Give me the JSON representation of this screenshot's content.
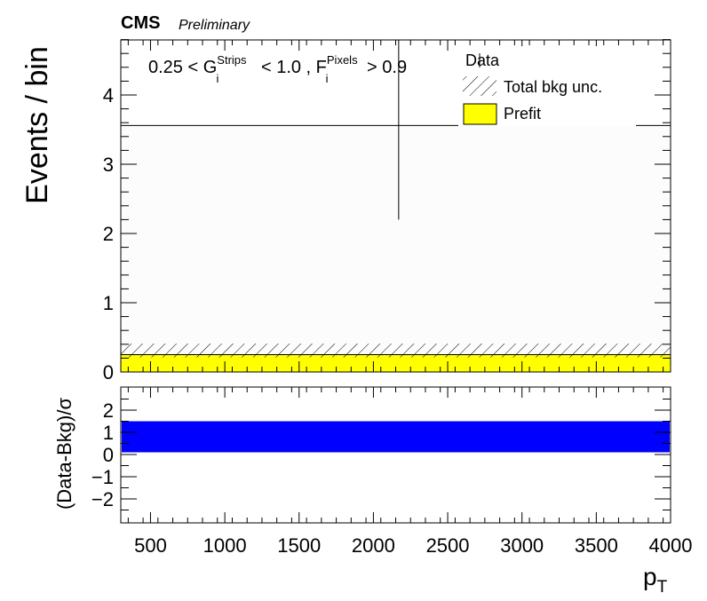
{
  "header": {
    "cms": "CMS",
    "preliminary": "Preliminary"
  },
  "annotation": {
    "prefix": "0.25 < G",
    "sub1": "i",
    "sup1": "Strips",
    "middle": " < 1.0 , F",
    "sub2": "i",
    "sup2": "Pixels",
    "suffix": " > 0.9"
  },
  "legend": {
    "data": "Data",
    "unc": "Total bkg unc.",
    "prefit": "Prefit"
  },
  "colors": {
    "prefit": "#ffff00",
    "ratio_band": "#0000ff",
    "hatch": "#000000"
  },
  "chart_data": [
    {
      "type": "bar",
      "ylabel": "Events / bin",
      "xlabel": "",
      "xlim": [
        300,
        4000
      ],
      "ylim": [
        0,
        4.85
      ],
      "yticks": [
        0,
        1,
        2,
        3,
        4
      ],
      "series": [
        {
          "name": "Prefit",
          "x_range": [
            300,
            4000
          ],
          "values": [
            0.25
          ]
        }
      ],
      "bkg_uncertainty_band": [
        0.21,
        0.41
      ],
      "data_point": {
        "x": 2170,
        "y": 3.56,
        "err_low": 2.2,
        "err_high": 4.85
      }
    },
    {
      "type": "area",
      "ylabel": "(Data-Bkg)/σ",
      "xlabel": "p_T",
      "xlim": [
        300,
        4000
      ],
      "ylim": [
        -3,
        3
      ],
      "yticks": [
        -2,
        -1,
        0,
        1,
        2
      ],
      "xticks": [
        500,
        1000,
        1500,
        2000,
        2500,
        3000,
        3500,
        4000
      ],
      "band": {
        "low": 0.1,
        "high": 1.5
      }
    }
  ]
}
